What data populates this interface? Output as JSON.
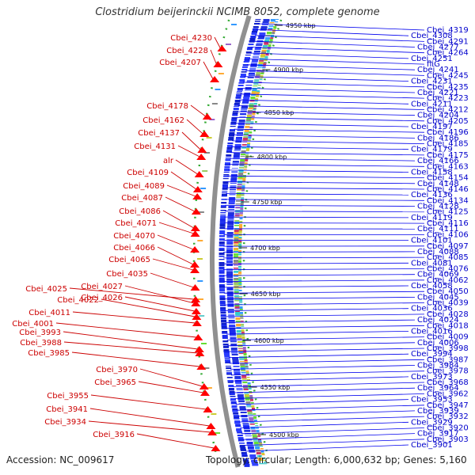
{
  "title": "Clostridium beijerinckii NCIMB 8052, complete genome",
  "accession": "Accession: NC_009617",
  "topology": "Topology: circular; Length: 6,000,632 bp; Genes: 5,160",
  "colors": {
    "left_label": "#cc0000",
    "right_label": "#0000cc",
    "left_marker": "#ff0000",
    "right_line": "#0000ee",
    "backbone": "#909090",
    "cds_ring": "#2233ee",
    "tick_ring": "#33aa33"
  },
  "kbp_ticks": [
    "4950 kbp",
    "4900 kbp",
    "4850 kbp",
    "4800 kbp",
    "4750 kbp",
    "4700 kbp",
    "4650 kbp",
    "4600 kbp",
    "4550 kbp",
    "4500 kbp"
  ],
  "left_labels": [
    "Cbei_4230",
    "Cbei_4228",
    "Cbei_4207",
    "Cbei_4178",
    "Cbei_4162",
    "Cbei_4137",
    "Cbei_4131",
    "alr",
    "Cbei_4109",
    "Cbei_4089",
    "Cbei_4087",
    "Cbei_4086",
    "Cbei_4071",
    "Cbei_4070",
    "Cbei_4066",
    "Cbei_4065",
    "Cbei_4035",
    "Cbei_4027",
    "Cbei_4025",
    "Cbei_4026",
    "Cbei_4022",
    "Cbei_4011",
    "Cbei_4001",
    "Cbei_3993",
    "Cbei_3988",
    "Cbei_3985",
    "Cbei_3970",
    "Cbei_3965",
    "Cbei_3955",
    "Cbei_3941",
    "Cbei_3934",
    "Cbei_3916"
  ],
  "right_labels": [
    "Cbei_4319",
    "Cbei_4308",
    "Cbei_4291",
    "Cbei_4277",
    "Cbei_4264",
    "Cbei_4251",
    "fliG",
    "Cbei_4241",
    "Cbei_4245",
    "Cbei_4231",
    "Cbei_4235",
    "Cbei_4221",
    "Cbei_4223",
    "Cbei_4211",
    "Cbei_4212",
    "Cbei_4204",
    "Cbei_4205",
    "Cbei_4197",
    "Cbei_4196",
    "Cbei_4186",
    "Cbei_4185",
    "Cbei_4179",
    "Cbei_4175",
    "Cbei_4166",
    "Cbei_4163",
    "Cbei_4158",
    "Cbei_4154",
    "Cbei_4148",
    "Cbei_4146",
    "Cbei_4136",
    "Cbei_4134",
    "Cbei_4128",
    "Cbei_4125",
    "Cbei_4119",
    "Cbei_4116",
    "Cbei_4111",
    "Cbei_4106",
    "Cbei_4101",
    "Cbei_4097",
    "Cbei_4088",
    "Cbei_4085",
    "Cbei_4081",
    "Cbei_4076",
    "Cbei_4069",
    "Cbei_4062",
    "Cbei_4058",
    "Cbei_4050",
    "Cbei_4045",
    "Cbei_4039",
    "Cbei_4036",
    "Cbei_4028",
    "Cbei_4024",
    "Cbei_4018",
    "Cbei_4016",
    "Cbei_4009",
    "Cbei_4006",
    "Cbei_3998",
    "Cbei_3994",
    "Cbei_3987",
    "Cbei_3984",
    "Cbei_3978",
    "Cbei_3973",
    "Cbei_3968",
    "Cbei_3964",
    "Cbei_3962",
    "Cbei_3953",
    "Cbei_3947",
    "Cbei_3939",
    "Cbei_3932",
    "Cbei_3929",
    "Cbei_3920",
    "Cbei_3917",
    "Cbei_3903",
    "Cbei_3901"
  ]
}
